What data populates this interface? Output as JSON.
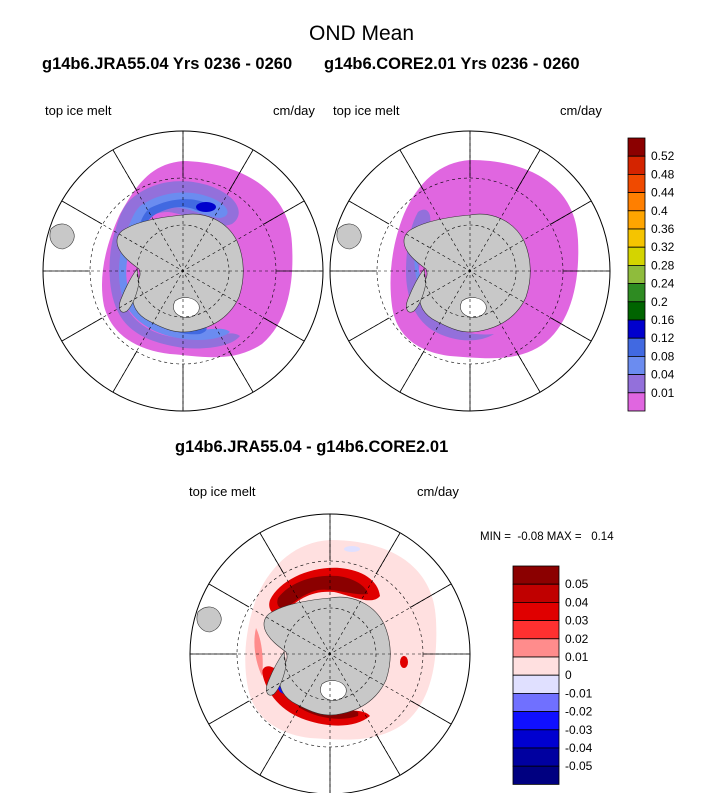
{
  "page": {
    "title": "OND Mean",
    "run1_header": "g14b6.JRA55.04  Yrs 0236 - 0260",
    "run2_header": "g14b6.CORE2.01  Yrs 0236 - 0260",
    "diff_header": "g14b6.JRA55.04 - g14b6.CORE2.01"
  },
  "panels": {
    "run1": {
      "variable": "top ice melt",
      "units": "cm/day"
    },
    "run2": {
      "variable": "top ice melt",
      "units": "cm/day"
    },
    "diff": {
      "variable": "top ice melt",
      "units": "cm/day",
      "stats": "MIN =  -0.08 MAX =   0.14"
    }
  },
  "colorbar_main": {
    "labels": [
      "0.52",
      "0.48",
      "0.44",
      "0.4",
      "0.36",
      "0.32",
      "0.28",
      "0.24",
      "0.2",
      "0.16",
      "0.12",
      "0.08",
      "0.04",
      "0.01"
    ],
    "colors": [
      "#8b0000",
      "#d42400",
      "#f04a00",
      "#ff7f00",
      "#ffa500",
      "#f5c400",
      "#d4d400",
      "#8fbc3c",
      "#2e8b22",
      "#006400",
      "#0000cd",
      "#4169e1",
      "#6b8cf0",
      "#9370db",
      "#e066e0"
    ]
  },
  "colorbar_diff": {
    "labels": [
      "0.05",
      "0.04",
      "0.03",
      "0.02",
      "0.01",
      "0",
      "-0.01",
      "-0.02",
      "-0.03",
      "-0.04",
      "-0.05"
    ],
    "colors": [
      "#8b0000",
      "#c00000",
      "#e00000",
      "#ff3030",
      "#ff8c8c",
      "#ffe0e0",
      "#e0e0ff",
      "#7070ff",
      "#1010ff",
      "#0000d0",
      "#0000a0",
      "#000080"
    ]
  },
  "map": {
    "land_color": "#c8c8c8",
    "pink": "#e066e0",
    "lilac": "#9370db",
    "light_blue": "#6b8cf0",
    "mid_blue": "#4169e1",
    "dark_blue": "#0000cd"
  }
}
